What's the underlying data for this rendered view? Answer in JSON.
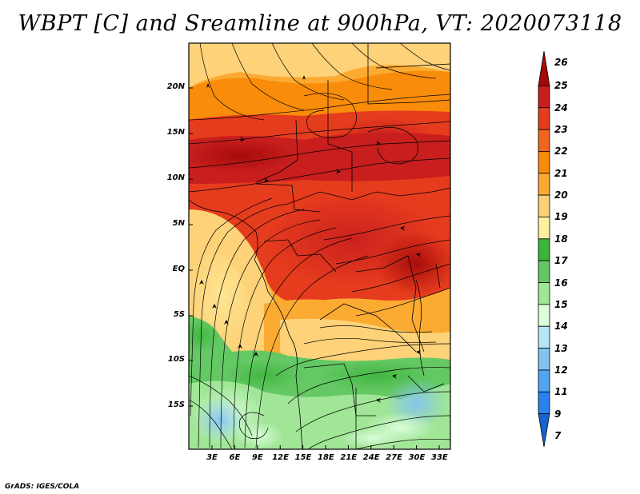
{
  "title": "WBPT [C] and Sreamline at 900hPa, VT: 2020073118",
  "credit": "GrADS: IGES/COLA",
  "map": {
    "variable": "Wet-bulb potential temperature",
    "units": "C",
    "level": "900hPa",
    "valid_time": "2020073118",
    "lat_labels": [
      "20N",
      "15N",
      "10N",
      "5N",
      "EQ",
      "5S",
      "10S",
      "15S"
    ],
    "lon_labels": [
      "3E",
      "6E",
      "9E",
      "12E",
      "15E",
      "18E",
      "21E",
      "24E",
      "27E",
      "30E",
      "33E"
    ]
  },
  "colorbar": {
    "labels": [
      "26",
      "25",
      "24",
      "23",
      "22",
      "21",
      "20",
      "19",
      "18",
      "17",
      "16",
      "15",
      "14",
      "13",
      "12",
      "11",
      "9",
      "7"
    ],
    "colors": [
      "#a50a0a",
      "#c81e1e",
      "#e63c1e",
      "#f0641e",
      "#f98c0a",
      "#fbaa32",
      "#fdd278",
      "#fff0a0",
      "#3cb43c",
      "#64c864",
      "#a0e696",
      "#dcffdc",
      "#b4e6f5",
      "#82c3f0",
      "#50a5f0",
      "#2882f0",
      "#1464d2"
    ]
  },
  "colors": {
    "frame": "#000000",
    "streamline": "#000000",
    "border": "#000000"
  }
}
